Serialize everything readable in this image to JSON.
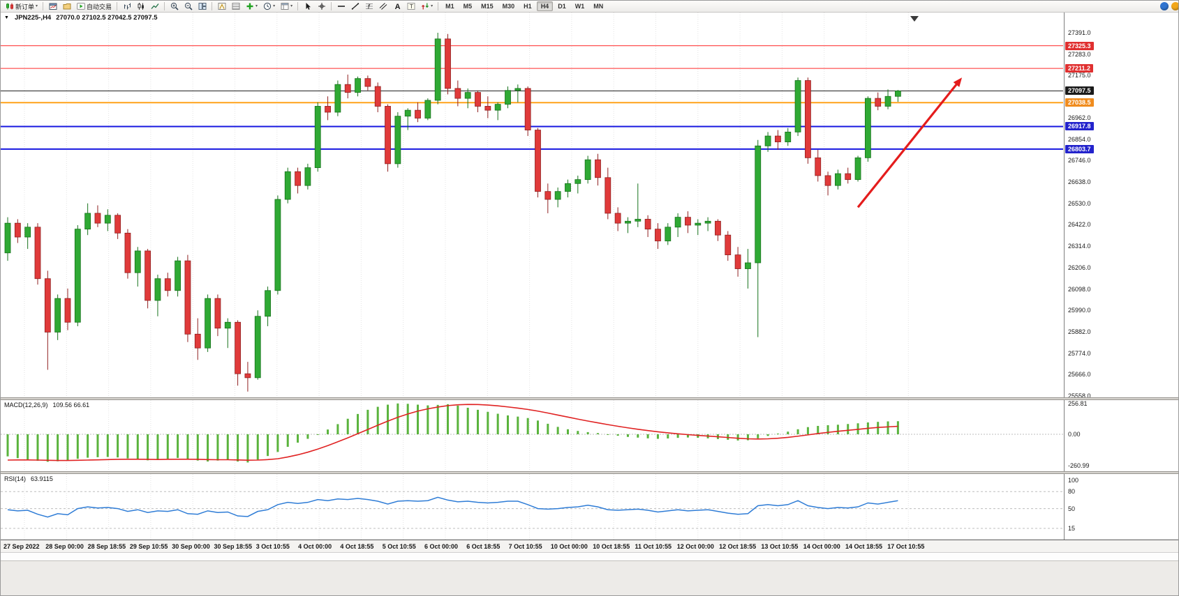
{
  "icons": {
    "one_click": "▼",
    "dropdown_caret": "▾"
  },
  "window": {
    "right_icons": [
      {
        "name": "info",
        "color": "#2f74d0"
      },
      {
        "name": "alert",
        "color": "#f2a71b"
      }
    ]
  },
  "toolbar": {
    "groups": [
      {
        "items": [
          {
            "id": "new-order",
            "icon": "new-order",
            "label": "新订单",
            "dropdown": true
          }
        ]
      },
      {
        "items": [
          {
            "id": "charts-window",
            "icon": "chart-window"
          },
          {
            "id": "profiles",
            "icon": "profiles"
          },
          {
            "id": "autotrading",
            "icon": "autotrading",
            "label": "自动交易"
          }
        ]
      },
      {
        "items": [
          {
            "id": "bar-chart",
            "icon": "bars"
          },
          {
            "id": "candle-chart",
            "icon": "candles"
          },
          {
            "id": "line-chart",
            "icon": "line-chart"
          }
        ]
      },
      {
        "items": [
          {
            "id": "zoom-in",
            "icon": "zoom-in"
          },
          {
            "id": "zoom-out",
            "icon": "zoom-out"
          },
          {
            "id": "tile-windows",
            "icon": "tile"
          }
        ]
      },
      {
        "items": [
          {
            "id": "navigator",
            "icon": "navigator"
          },
          {
            "id": "data-window",
            "icon": "data-window"
          },
          {
            "id": "indicators",
            "icon": "indicators",
            "dropdown": true
          },
          {
            "id": "periods",
            "icon": "periods",
            "dropdown": true
          },
          {
            "id": "templates",
            "icon": "templates",
            "dropdown": true
          }
        ]
      },
      {
        "items": [
          {
            "id": "cursor",
            "icon": "cursor"
          },
          {
            "id": "crosshair",
            "icon": "crosshair"
          }
        ]
      },
      {
        "items": [
          {
            "id": "horizontal-line",
            "icon": "hline"
          },
          {
            "id": "trendline",
            "icon": "trendline"
          },
          {
            "id": "fibonacci",
            "icon": "fibo"
          },
          {
            "id": "equidistant-channel",
            "icon": "channel"
          },
          {
            "id": "text",
            "icon": "text-a"
          },
          {
            "id": "text-label",
            "icon": "text-t"
          },
          {
            "id": "arrows",
            "icon": "arrows",
            "dropdown": true
          }
        ]
      }
    ],
    "timeframes": {
      "options": [
        "M1",
        "M5",
        "M15",
        "M30",
        "H1",
        "H4",
        "D1",
        "W1",
        "MN"
      ],
      "active": "H4"
    }
  },
  "chart_data": {
    "type": "candlestick",
    "symbol": "JPN225-",
    "period": "H4",
    "title_left": "JPN225-,H4",
    "title_ohlc": "27070.0 27102.5 27042.5 27097.5",
    "ohlc": {
      "open": "27070.0",
      "high": "27102.5",
      "low": "27042.5",
      "close": "27097.5"
    },
    "y_axis": {
      "max": 27391,
      "min": 25558,
      "ticks": [
        "27391.0",
        "27283.0",
        "27175.0",
        "26962.0",
        "26854.0",
        "26746.0",
        "26638.0",
        "26530.0",
        "26422.0",
        "26314.0",
        "26206.0",
        "26098.0",
        "25990.0",
        "25882.0",
        "25774.0",
        "25666.0",
        "25558.0"
      ]
    },
    "badges": [
      {
        "label": "27325.3",
        "price": 27325.3,
        "color": "#e03030"
      },
      {
        "label": "27211.2",
        "price": 27211.2,
        "color": "#e03030"
      },
      {
        "label": "27097.5",
        "price": 27097.5,
        "color": "#1a1a1a"
      },
      {
        "label": "27038.5",
        "price": 27038.5,
        "color": "#f08c1e"
      },
      {
        "label": "26917.8",
        "price": 26917.8,
        "color": "#2323cc"
      },
      {
        "label": "26803.7",
        "price": 26803.7,
        "color": "#2323cc"
      }
    ],
    "hlines": [
      {
        "price": 27325.3,
        "color": "#ff2a2a",
        "w": 1
      },
      {
        "price": 27211.2,
        "color": "#ff2a2a",
        "w": 1
      },
      {
        "price": 27097.5,
        "color": "#1a1a1a",
        "w": 1
      },
      {
        "price": 27038.5,
        "color": "#ffa21a",
        "w": 2
      },
      {
        "price": 26917.8,
        "color": "#1717e0",
        "w": 2
      },
      {
        "price": 26803.7,
        "color": "#1717e0",
        "w": 2
      }
    ],
    "x_labels": [
      "27 Sep 2022",
      "28 Sep 00:00",
      "28 Sep 18:55",
      "29 Sep 10:55",
      "30 Sep 00:00",
      "30 Sep 18:55",
      "3 Oct 10:55",
      "4 Oct 00:00",
      "4 Oct 18:55",
      "5 Oct 10:55",
      "6 Oct 00:00",
      "6 Oct 18:55",
      "7 Oct 10:55",
      "10 Oct 00:00",
      "10 Oct 18:55",
      "11 Oct 10:55",
      "12 Oct 00:00",
      "12 Oct 18:55",
      "13 Oct 10:55",
      "14 Oct 00:00",
      "14 Oct 18:55",
      "17 Oct 10:55"
    ],
    "candles": [
      [
        26280,
        26460,
        26240,
        26430
      ],
      [
        26430,
        26450,
        26330,
        26360
      ],
      [
        26360,
        26430,
        26300,
        26410
      ],
      [
        26410,
        26430,
        26120,
        26150
      ],
      [
        26150,
        26190,
        25690,
        25880
      ],
      [
        25880,
        26070,
        25840,
        26050
      ],
      [
        26050,
        26100,
        25890,
        25930
      ],
      [
        25930,
        26420,
        25910,
        26400
      ],
      [
        26400,
        26530,
        26370,
        26480
      ],
      [
        26480,
        26520,
        26410,
        26430
      ],
      [
        26430,
        26500,
        26390,
        26470
      ],
      [
        26470,
        26480,
        26350,
        26380
      ],
      [
        26380,
        26400,
        26150,
        26180
      ],
      [
        26180,
        26310,
        26110,
        26290
      ],
      [
        26290,
        26300,
        26000,
        26040
      ],
      [
        26040,
        26170,
        25960,
        26150
      ],
      [
        26150,
        26180,
        26060,
        26090
      ],
      [
        26090,
        26260,
        26060,
        26240
      ],
      [
        26240,
        26270,
        25830,
        25870
      ],
      [
        25870,
        25950,
        25740,
        25800
      ],
      [
        25800,
        26070,
        25780,
        26050
      ],
      [
        26050,
        26070,
        25860,
        25900
      ],
      [
        25900,
        25950,
        25800,
        25930
      ],
      [
        25930,
        25940,
        25610,
        25670
      ],
      [
        25670,
        25730,
        25580,
        25650
      ],
      [
        25650,
        25990,
        25640,
        25960
      ],
      [
        25960,
        26110,
        25910,
        26090
      ],
      [
        26090,
        26570,
        26070,
        26550
      ],
      [
        26550,
        26710,
        26530,
        26690
      ],
      [
        26690,
        26710,
        26580,
        26620
      ],
      [
        26620,
        26730,
        26600,
        26710
      ],
      [
        26710,
        27040,
        26690,
        27020
      ],
      [
        27020,
        27070,
        26950,
        26990
      ],
      [
        26990,
        27150,
        26970,
        27130
      ],
      [
        27130,
        27180,
        27060,
        27090
      ],
      [
        27090,
        27170,
        27070,
        27160
      ],
      [
        27160,
        27175,
        27100,
        27120
      ],
      [
        27120,
        27140,
        26990,
        27020
      ],
      [
        27020,
        27030,
        26690,
        26730
      ],
      [
        26730,
        26990,
        26710,
        26970
      ],
      [
        26970,
        27010,
        26900,
        27000
      ],
      [
        27000,
        27040,
        26940,
        26960
      ],
      [
        26960,
        27060,
        26950,
        27050
      ],
      [
        27050,
        27391,
        27030,
        27360
      ],
      [
        27360,
        27385,
        27080,
        27110
      ],
      [
        27110,
        27150,
        27020,
        27060
      ],
      [
        27060,
        27110,
        27010,
        27090
      ],
      [
        27090,
        27100,
        26990,
        27020
      ],
      [
        27020,
        27070,
        26960,
        27000
      ],
      [
        27000,
        27040,
        26950,
        27030
      ],
      [
        27030,
        27120,
        27010,
        27100
      ],
      [
        27100,
        27130,
        27040,
        27110
      ],
      [
        27110,
        27120,
        26870,
        26900
      ],
      [
        26900,
        26910,
        26560,
        26590
      ],
      [
        26590,
        26630,
        26480,
        26550
      ],
      [
        26550,
        26610,
        26510,
        26590
      ],
      [
        26590,
        26650,
        26560,
        26630
      ],
      [
        26630,
        26670,
        26580,
        26650
      ],
      [
        26650,
        26770,
        26630,
        26750
      ],
      [
        26750,
        26780,
        26620,
        26660
      ],
      [
        26660,
        26710,
        26450,
        26480
      ],
      [
        26480,
        26510,
        26390,
        26430
      ],
      [
        26430,
        26460,
        26380,
        26440
      ],
      [
        26440,
        26630,
        26410,
        26450
      ],
      [
        26450,
        26470,
        26360,
        26400
      ],
      [
        26400,
        26430,
        26300,
        26340
      ],
      [
        26340,
        26430,
        26320,
        26410
      ],
      [
        26410,
        26480,
        26360,
        26460
      ],
      [
        26460,
        26490,
        26380,
        26420
      ],
      [
        26420,
        26450,
        26370,
        26430
      ],
      [
        26430,
        26460,
        26390,
        26440
      ],
      [
        26440,
        26450,
        26340,
        26370
      ],
      [
        26370,
        26390,
        26240,
        26270
      ],
      [
        26270,
        26310,
        26160,
        26200
      ],
      [
        26200,
        26300,
        26100,
        26230
      ],
      [
        26230,
        26850,
        25855,
        26820
      ],
      [
        26820,
        26890,
        26790,
        26870
      ],
      [
        26870,
        26900,
        26800,
        26840
      ],
      [
        26840,
        26910,
        26820,
        26890
      ],
      [
        26890,
        27165,
        26870,
        27150
      ],
      [
        27150,
        27165,
        26730,
        26760
      ],
      [
        26760,
        26800,
        26640,
        26670
      ],
      [
        26670,
        26690,
        26570,
        26620
      ],
      [
        26620,
        26700,
        26600,
        26680
      ],
      [
        26680,
        26710,
        26630,
        26650
      ],
      [
        26650,
        26770,
        26640,
        26760
      ],
      [
        26760,
        27070,
        26740,
        27060
      ],
      [
        27060,
        27090,
        27000,
        27020
      ],
      [
        27020,
        27105,
        27005,
        27070
      ],
      [
        27070,
        27102.5,
        27042.5,
        27097.5
      ]
    ],
    "trend_arrow": {
      "from_index": 85,
      "from_price": 26510,
      "to_index": 95.4,
      "to_price": 27165,
      "color": "#e41c1c"
    },
    "colors": {
      "up": "#2fa934",
      "down": "#e03a3a",
      "up_stroke": "#17721c",
      "down_stroke": "#8f2020",
      "grid": "#e3e3e3",
      "background": "#ffffff"
    },
    "macd": {
      "title": "MACD(12,26,9)",
      "values_label": "109.56 66.61",
      "axis_labels": [
        "256.81",
        "0.00",
        "-260.99"
      ],
      "axis_values": [
        256.81,
        0,
        -260.99
      ],
      "max": 256.81,
      "min": -260.99,
      "hist_color": "#5ab33c",
      "signal_color": "#e02222",
      "histogram": [
        -185,
        -200,
        -210,
        -222,
        -230,
        -226,
        -218,
        -205,
        -196,
        -192,
        -190,
        -194,
        -202,
        -210,
        -218,
        -214,
        -206,
        -198,
        -208,
        -220,
        -228,
        -220,
        -214,
        -228,
        -236,
        -212,
        -182,
        -148,
        -105,
        -70,
        -38,
        -5,
        40,
        85,
        130,
        170,
        205,
        230,
        248,
        258,
        255,
        248,
        242,
        246,
        252,
        240,
        222,
        205,
        188,
        172,
        158,
        148,
        136,
        115,
        88,
        62,
        42,
        28,
        18,
        10,
        -2,
        -12,
        -22,
        -28,
        -34,
        -38,
        -35,
        -30,
        -27,
        -29,
        -34,
        -40,
        -46,
        -52,
        -50,
        -34,
        -14,
        6,
        22,
        42,
        60,
        70,
        76,
        80,
        86,
        92,
        99,
        104,
        108,
        109.56
      ],
      "signal": [
        -216,
        -215,
        -215,
        -216,
        -218,
        -219,
        -219,
        -218,
        -216,
        -214,
        -212,
        -210,
        -209,
        -209,
        -210,
        -211,
        -210,
        -209,
        -209,
        -210,
        -212,
        -213,
        -213,
        -215,
        -217,
        -216,
        -212,
        -205,
        -190,
        -172,
        -150,
        -124,
        -95,
        -63,
        -30,
        5,
        40,
        76,
        110,
        142,
        170,
        194,
        213,
        228,
        240,
        247,
        250,
        249,
        245,
        238,
        229,
        219,
        208,
        194,
        178,
        161,
        144,
        127,
        111,
        96,
        81,
        67,
        54,
        42,
        31,
        21,
        12,
        4,
        -3,
        -9,
        -15,
        -21,
        -27,
        -33,
        -38,
        -40,
        -38,
        -33,
        -26,
        -16,
        -5,
        6,
        16,
        25,
        33,
        41,
        50,
        57,
        62,
        66.61
      ]
    },
    "rsi": {
      "title": "RSI(14)",
      "value_label": "63.9115",
      "axis_labels": [
        "100",
        "80",
        "50",
        "15"
      ],
      "levels": [
        80,
        50,
        15
      ],
      "range_top": 100,
      "range_bottom": 0,
      "color": "#2e7cd6",
      "values": [
        48,
        46,
        47,
        40,
        35,
        41,
        39,
        50,
        53,
        51,
        52,
        50,
        45,
        48,
        43,
        46,
        45,
        48,
        41,
        40,
        46,
        43,
        44,
        37,
        36,
        45,
        48,
        57,
        61,
        59,
        61,
        66,
        64,
        67,
        66,
        68,
        66,
        63,
        58,
        63,
        64,
        63,
        64,
        70,
        65,
        62,
        63,
        61,
        60,
        61,
        63,
        63,
        57,
        50,
        49,
        50,
        52,
        53,
        56,
        53,
        48,
        47,
        48,
        49,
        47,
        44,
        46,
        48,
        46,
        47,
        48,
        45,
        42,
        40,
        41,
        55,
        57,
        55,
        57,
        64,
        55,
        52,
        50,
        52,
        51,
        53,
        60,
        58,
        61,
        63.91
      ]
    }
  }
}
